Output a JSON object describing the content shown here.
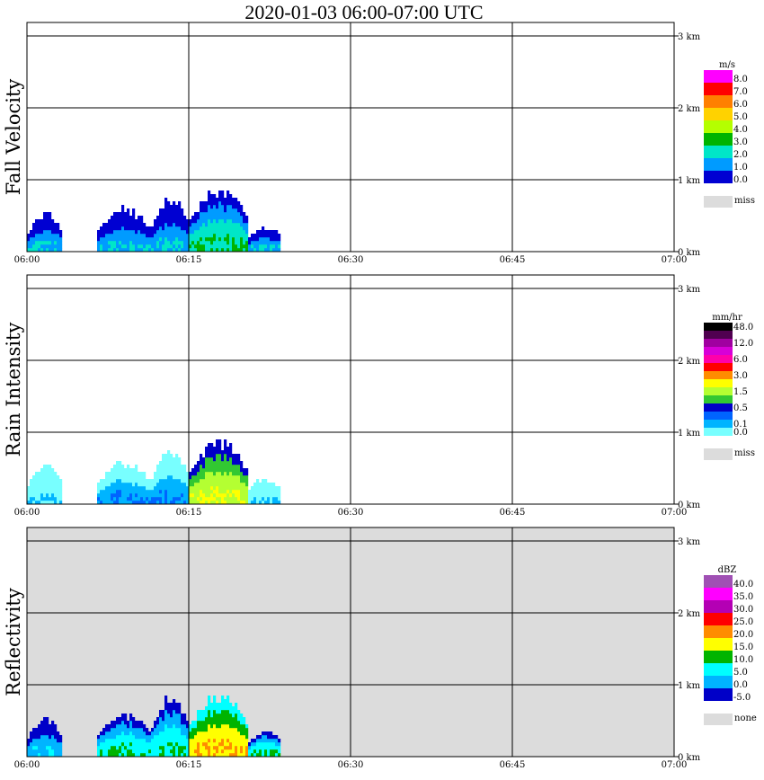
{
  "title": "2020-01-03   06:00-07:00 UTC",
  "x_ticks": [
    "06:00",
    "06:15",
    "06:30",
    "06:45",
    "07:00"
  ],
  "y_ticks": [
    "0 km",
    "1 km",
    "2 km",
    "3 km"
  ],
  "panels": [
    {
      "id": "fall-velocity",
      "ylabel": "Fall Velocity",
      "unit": "m/s",
      "background": "#ffffff",
      "legend": [
        {
          "color": "#ff00ff",
          "label": "8.0"
        },
        {
          "color": "#ff0000",
          "label": "7.0"
        },
        {
          "color": "#ff7f00",
          "label": "6.0"
        },
        {
          "color": "#ffd200",
          "label": "5.0"
        },
        {
          "color": "#b4ff00",
          "label": "4.0"
        },
        {
          "color": "#00b400",
          "label": "3.0"
        },
        {
          "color": "#00e6c8",
          "label": "2.0"
        },
        {
          "color": "#009bff",
          "label": "1.0"
        },
        {
          "color": "#0000d2",
          "label": "0.0"
        }
      ],
      "missing": {
        "color": "#dcdcdc",
        "label": "miss"
      }
    },
    {
      "id": "rain-intensity",
      "ylabel": "Rain Intensity",
      "unit": "mm/hr",
      "background": "#ffffff",
      "legend": [
        {
          "color": "#000000",
          "label": "48.0"
        },
        {
          "color": "#500050",
          "label": ""
        },
        {
          "color": "#a000a0",
          "label": "12.0"
        },
        {
          "color": "#d700d7",
          "label": ""
        },
        {
          "color": "#ff00aa",
          "label": "6.0"
        },
        {
          "color": "#ff0000",
          "label": ""
        },
        {
          "color": "#ff8c00",
          "label": "3.0"
        },
        {
          "color": "#ffff00",
          "label": ""
        },
        {
          "color": "#b4ff32",
          "label": "1.5"
        },
        {
          "color": "#32c832",
          "label": ""
        },
        {
          "color": "#0000c8",
          "label": "0.5"
        },
        {
          "color": "#0064ff",
          "label": ""
        },
        {
          "color": "#00b4ff",
          "label": "0.1"
        },
        {
          "color": "#78ffff",
          "label": "0.0"
        }
      ],
      "missing": {
        "color": "#dcdcdc",
        "label": "miss"
      }
    },
    {
      "id": "reflectivity",
      "ylabel": "Reflectivity",
      "unit": "dBZ",
      "background": "#dcdcdc",
      "legend": [
        {
          "color": "#a050b4",
          "label": "40.0"
        },
        {
          "color": "#ff00ff",
          "label": "35.0"
        },
        {
          "color": "#b400b4",
          "label": "30.0"
        },
        {
          "color": "#ff0000",
          "label": "25.0"
        },
        {
          "color": "#ff8c00",
          "label": "20.0"
        },
        {
          "color": "#ffff00",
          "label": "15.0"
        },
        {
          "color": "#00b400",
          "label": "10.0"
        },
        {
          "color": "#00ffff",
          "label": "5.0"
        },
        {
          "color": "#00b4ff",
          "label": "0.0"
        },
        {
          "color": "#0000c8",
          "label": "-5.0"
        }
      ],
      "missing": {
        "color": "#dcdcdc",
        "label": "none"
      }
    }
  ],
  "chart_data": [
    {
      "type": "heatmap",
      "title": "2020-01-03   06:00-07:00 UTC",
      "ylabel": "Fall Velocity",
      "x_range": [
        "06:00",
        "07:00"
      ],
      "y_range_km": [
        0,
        3.5
      ],
      "echo_cells": [
        {
          "t_start_min": 0.0,
          "t_end_min": 3.2,
          "top_km": 0.6,
          "class": "1.0"
        },
        {
          "t_start_min": 6.5,
          "t_end_min": 11.5,
          "top_km": 0.65,
          "class": "1.0"
        },
        {
          "t_start_min": 11.5,
          "t_end_min": 15.0,
          "top_km": 0.8,
          "class": "1.0"
        },
        {
          "t_start_min": 15.0,
          "t_end_min": 20.5,
          "top_km": 0.95,
          "class": "2.0"
        },
        {
          "t_start_min": 20.5,
          "t_end_min": 23.5,
          "top_km": 0.4,
          "class": "1.0"
        }
      ]
    },
    {
      "type": "heatmap",
      "ylabel": "Rain Intensity",
      "x_range": [
        "06:00",
        "07:00"
      ],
      "y_range_km": [
        0,
        3.5
      ],
      "echo_cells": [
        {
          "t_start_min": 0.0,
          "t_end_min": 3.2,
          "top_km": 0.6,
          "class": "0.0"
        },
        {
          "t_start_min": 6.5,
          "t_end_min": 11.5,
          "top_km": 0.65,
          "class": "0.1"
        },
        {
          "t_start_min": 11.5,
          "t_end_min": 15.0,
          "top_km": 0.8,
          "class": "0.1"
        },
        {
          "t_start_min": 15.0,
          "t_end_min": 20.5,
          "top_km": 0.95,
          "class": "1.5"
        },
        {
          "t_start_min": 20.5,
          "t_end_min": 23.5,
          "top_km": 0.4,
          "class": "0.0"
        }
      ]
    },
    {
      "type": "heatmap",
      "ylabel": "Reflectivity",
      "x_range": [
        "06:00",
        "07:00"
      ],
      "y_range_km": [
        0,
        3.5
      ],
      "echo_cells": [
        {
          "t_start_min": 0.0,
          "t_end_min": 3.2,
          "top_km": 0.6,
          "class": "0.0"
        },
        {
          "t_start_min": 6.5,
          "t_end_min": 11.5,
          "top_km": 0.65,
          "class": "5.0"
        },
        {
          "t_start_min": 11.5,
          "t_end_min": 15.0,
          "top_km": 0.9,
          "class": "5.0"
        },
        {
          "t_start_min": 15.0,
          "t_end_min": 20.5,
          "top_km": 0.95,
          "class": "15.0"
        },
        {
          "t_start_min": 20.5,
          "t_end_min": 23.5,
          "top_km": 0.4,
          "class": "5.0"
        }
      ]
    }
  ]
}
